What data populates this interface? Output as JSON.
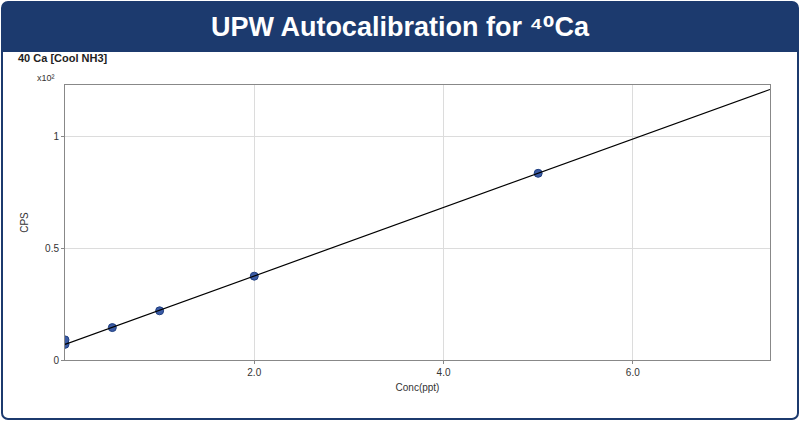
{
  "chart_data": {
    "type": "scatter",
    "title": "UPW Autocalibration for ⁴⁰Ca",
    "subtitle": "40 Ca [Cool NH3]",
    "x_label": "Conc(ppt)",
    "y_label": "CPS",
    "annotations": [
      "x10²"
    ],
    "series": [
      {
        "type": "scatter",
        "color": "#3b5ba5",
        "marker": "circle",
        "x": [
          0,
          0,
          0.5,
          1.0,
          2.0,
          5.0
        ],
        "values": [
          0.07,
          0.09,
          0.145,
          0.22,
          0.375,
          0.835
        ]
      },
      {
        "type": "line",
        "color": "#000000",
        "line_style": "solid",
        "x": [
          0,
          7.45
        ],
        "values": [
          0.07,
          1.21
        ]
      }
    ],
    "xlim": [
      0,
      7.45
    ],
    "ylim": [
      0,
      1.23
    ],
    "xticks": [
      {
        "value": 2,
        "label": "2.0"
      },
      {
        "value": 4,
        "label": "4.0"
      },
      {
        "value": 6,
        "label": "6.0"
      }
    ],
    "yticks": [
      0,
      0.5,
      1
    ],
    "grid": true
  }
}
